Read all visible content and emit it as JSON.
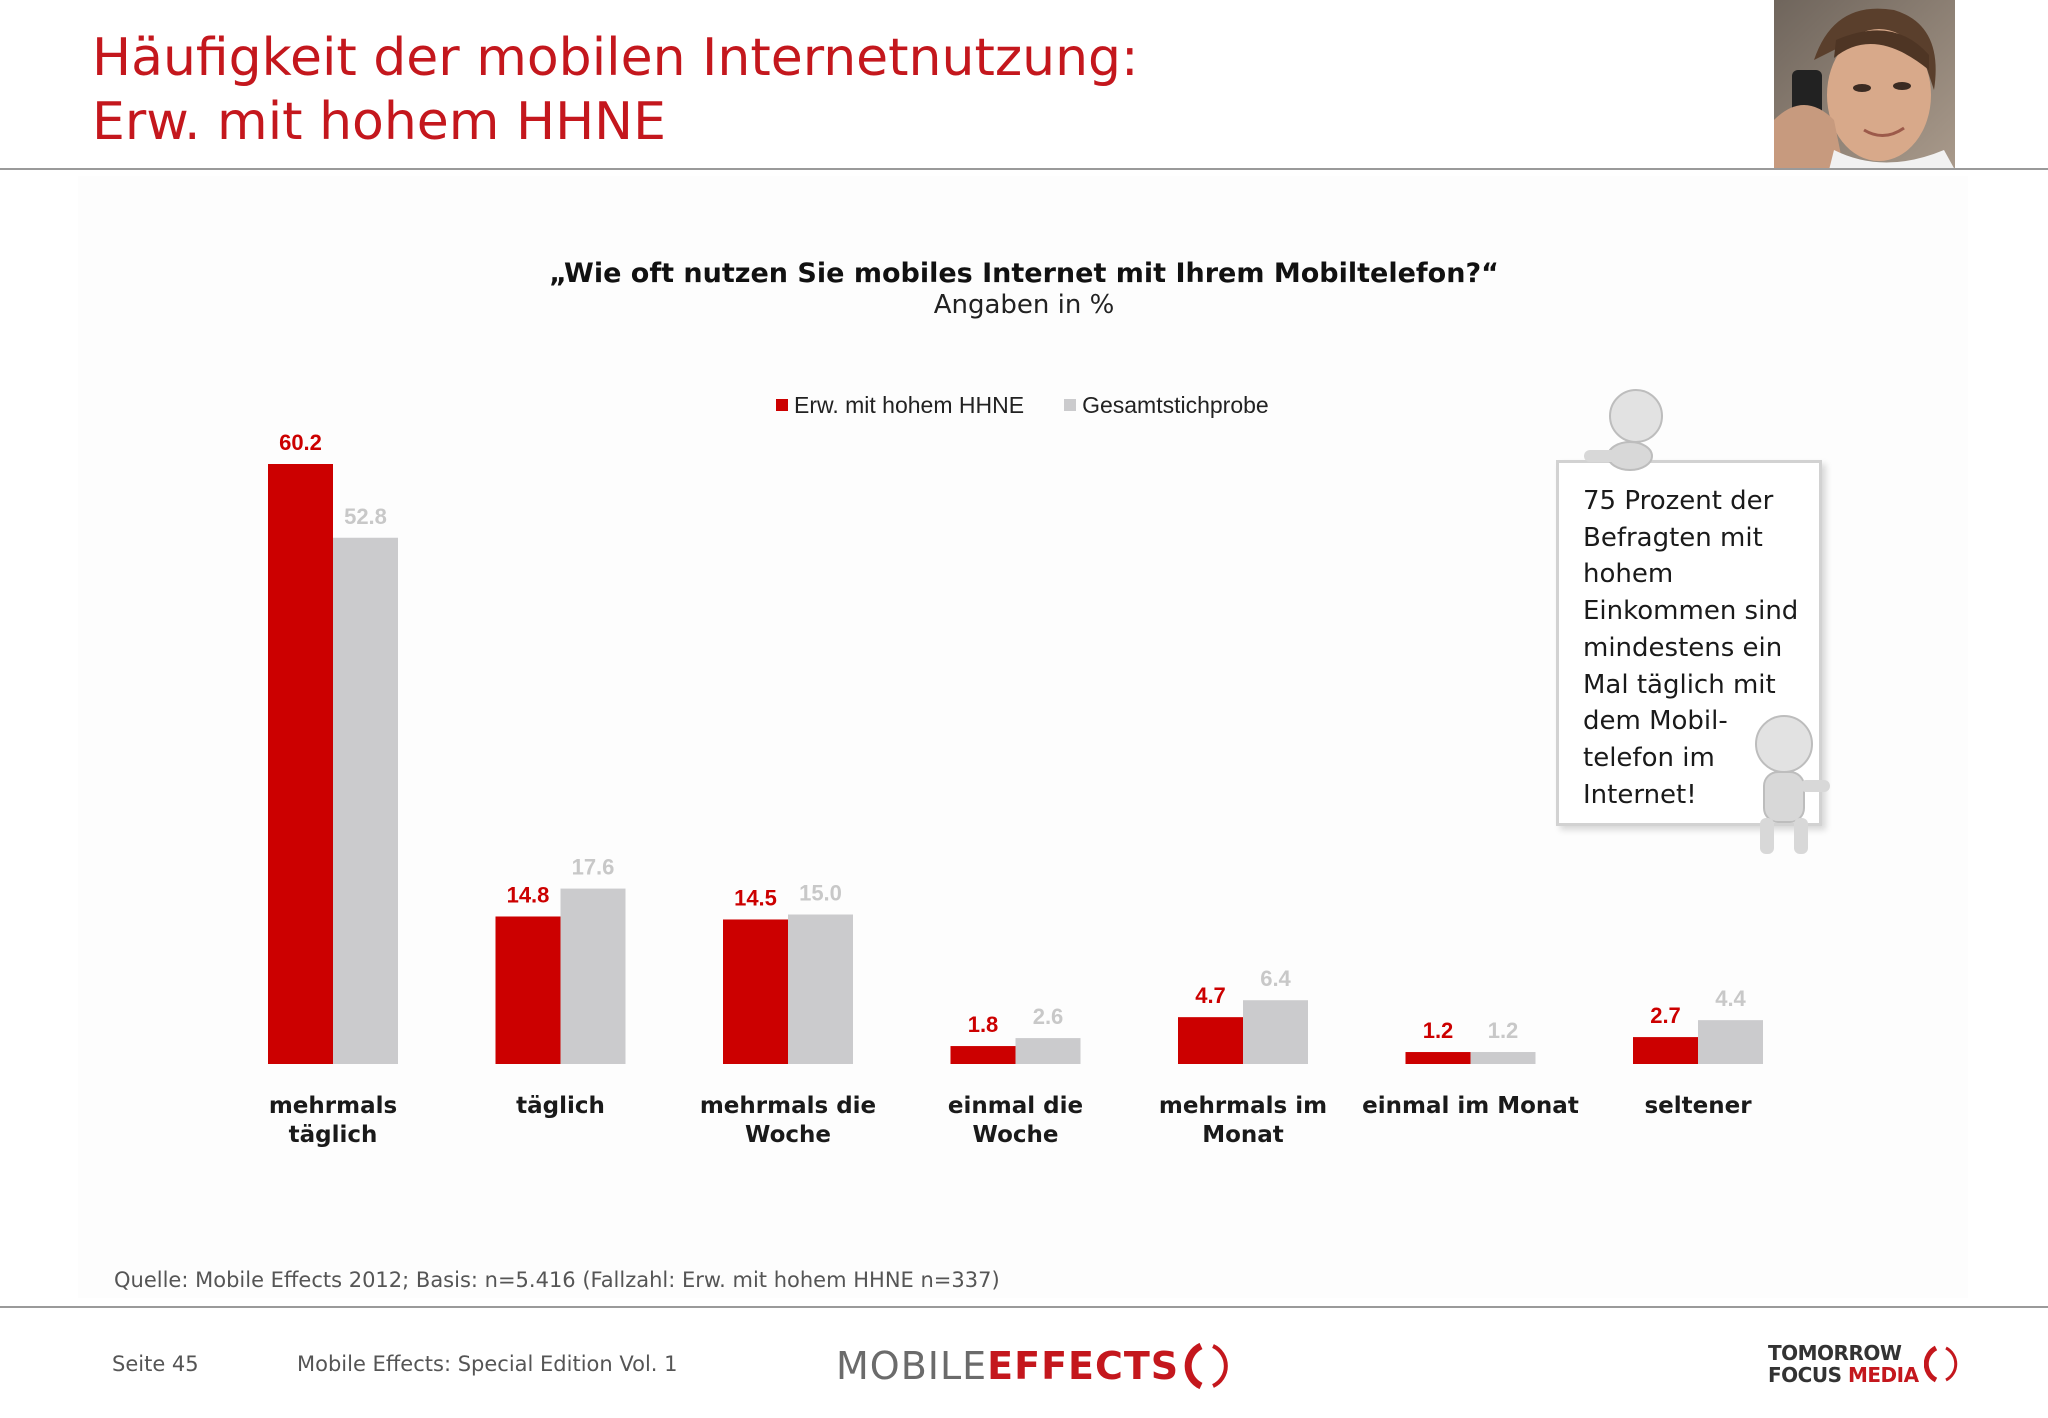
{
  "header": {
    "title_line1": "Häufigkeit der mobilen Internetnutzung:",
    "title_line2": "Erw. mit hohem HHNE"
  },
  "colors": {
    "accent_red": "#c4171d",
    "series_red": "#cc0000",
    "series_grey": "#cbcbcd",
    "label_grey": "#c8c8c8"
  },
  "chart_data": {
    "type": "bar",
    "title": "„Wie oft nutzen Sie mobiles Internet mit Ihrem Mobiltelefon?“",
    "subtitle": "Angaben in %",
    "categories": [
      [
        "mehrmals",
        "täglich"
      ],
      [
        "täglich"
      ],
      [
        "mehrmals die",
        "Woche"
      ],
      [
        "einmal die",
        "Woche"
      ],
      [
        "mehrmals im",
        "Monat"
      ],
      [
        "einmal im Monat"
      ],
      [
        "seltener"
      ]
    ],
    "series": [
      {
        "name": "Erw. mit hohem HHNE",
        "color": "#cc0000",
        "label_color": "#cc0000",
        "values": [
          60.2,
          14.8,
          14.5,
          1.8,
          4.7,
          1.2,
          2.7
        ]
      },
      {
        "name": "Gesamtstichprobe",
        "color": "#cbcbcd",
        "label_color": "#c8c8c8",
        "values": [
          52.8,
          17.6,
          15.0,
          2.6,
          6.4,
          1.2,
          4.4
        ]
      }
    ],
    "ylim": [
      0,
      60.2
    ],
    "grid": false,
    "legend_position": "top-center",
    "value_labels": true
  },
  "note": {
    "lines": [
      "75 Prozent der",
      "Befragten mit",
      "hohem",
      "Einkommen sind",
      "mindestens ein",
      "Mal täglich mit",
      "dem Mobil-",
      "telefon im",
      "Internet!"
    ]
  },
  "source": "Quelle: Mobile Effects 2012; Basis: n=5.416 (Fallzahl: Erw. mit hohem HHNE n=337)",
  "footer": {
    "page": "Seite 45",
    "publication": "Mobile Effects: Special Edition Vol. 1",
    "logo_mobile": "MOBILE",
    "logo_effects": "EFFECTS",
    "logo_tfm_line1": "TOMORROW",
    "logo_tfm_focus": "FOCUS",
    "logo_tfm_media": "MEDIA"
  }
}
